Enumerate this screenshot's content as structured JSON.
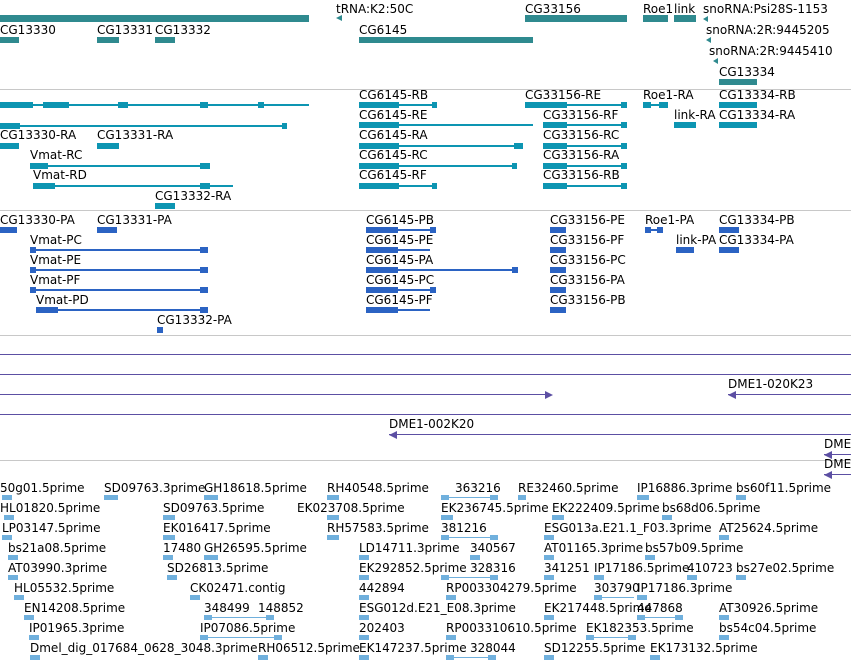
{
  "colors": {
    "gene": "#2f8a8f",
    "ncrna": "#2f8a8f",
    "transcript_cg": "#0d95b2",
    "transcript_pc": "#2b63c3",
    "clone": "#5c4fa3",
    "est": "#70b0dd",
    "separator": "#c8c8c8"
  },
  "tracks": {
    "genes": {
      "labels": [
        "CG13330",
        "CG13331",
        "CG13332",
        "tRNA:K2:50C",
        "CG6145",
        "CG33156",
        "Roe1",
        "link",
        "snoRNA:Psi28S-1153",
        "snoRNA:2R:9445205",
        "snoRNA:2R:9445410",
        "CG13334"
      ]
    },
    "transcripts_cg": {
      "labels": [
        "CG13330-RA",
        "CG13331-RA",
        "Vmat-RC",
        "Vmat-RD",
        "CG13332-RA",
        "CG6145-RB",
        "CG6145-RE",
        "CG6145-RA",
        "CG6145-RC",
        "CG6145-RF",
        "CG33156-RE",
        "CG33156-RF",
        "CG33156-RC",
        "CG33156-RA",
        "CG33156-RB",
        "Roe1-RA",
        "link-RA",
        "CG13334-RB",
        "CG13334-RA"
      ]
    },
    "transcripts_pc": {
      "labels": [
        "CG13330-PA",
        "CG13331-PA",
        "Vmat-PC",
        "Vmat-PE",
        "Vmat-PF",
        "Vmat-PD",
        "CG13332-PA",
        "CG6145-PB",
        "CG6145-PE",
        "CG6145-PA",
        "CG6145-PC",
        "CG6145-PF",
        "CG33156-PE",
        "CG33156-PF",
        "CG33156-PC",
        "CG33156-PA",
        "CG33156-PB",
        "Roe1-PA",
        "link-PA",
        "CG13334-PB",
        "CG13334-PA"
      ]
    },
    "clones": {
      "labels": [
        "DME1-020K23",
        "DME1-002K20",
        "DME",
        "DME"
      ]
    },
    "ests": {
      "labels": [
        "50g01.5prime",
        "SD09763.3prime",
        "GH18618.5prime",
        "RH40548.5prime",
        "363216",
        "RE32460.5prime",
        "IP16886.3prime",
        "bs60f11.5prime",
        "HL01820.5prime",
        "SD09763.5prime",
        "EK023708.5prime",
        "EK236745.5prime",
        "EK222409.5prime",
        "bs68d06.5prime",
        "LP03147.5prime",
        "EK016417.5prime",
        "RH57583.5prime",
        "381216",
        "ESG013a.E21.1_F03.3prime",
        "AT25624.5prime",
        "bs21a08.5prime",
        "17480",
        "GH26595.5prime",
        "LD14711.3prime",
        "340567",
        "AT01165.3prime",
        "bs57b09.5prime",
        "AT03990.3prime",
        "SD26813.5prime",
        "EK292852.5prime",
        "328316",
        "341251",
        "IP17186.5prime",
        "410723",
        "bs27e02.5prime",
        "HL05532.5prime",
        "CK02471.contig",
        "442894",
        "RP003304279.5prime",
        "303790",
        "IP17186.3prime",
        "EN14208.5prime",
        "348499",
        "148852",
        "ESG012d.E21_E08.3prime",
        "EK217448.5prime",
        "447868",
        "AT30926.5prime",
        "IP01965.3prime",
        "IP07086.5prime",
        "202403",
        "RP003310610.5prime",
        "EK182353.5prime",
        "bs54c04.5prime",
        "Dmel_dig_017684_0628_3048.3prime",
        "RH06512.5prime",
        "EK147237.5prime",
        "328044",
        "SD12255.5prime",
        "EK173132.5prime"
      ]
    }
  }
}
